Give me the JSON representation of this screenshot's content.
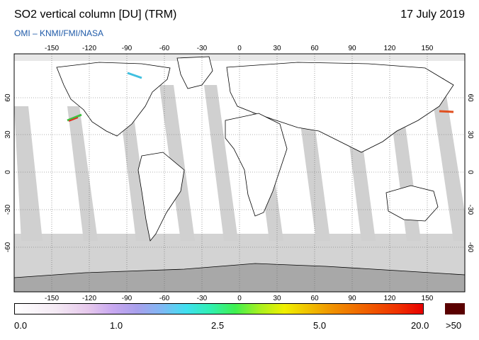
{
  "title": "SO2 vertical column [DU] (TRM)",
  "date": "17 July 2019",
  "source": "OMI  –  KNMI/FMI/NASA",
  "map": {
    "lon_ticks": [
      "-150",
      "-120",
      "-90",
      "-60",
      "-30",
      "0",
      "30",
      "60",
      "90",
      "120",
      "150"
    ],
    "lat_ticks_left": [
      "60",
      "30",
      "0",
      "-30",
      "-60"
    ],
    "lat_ticks_right": [
      "60",
      "30",
      "0",
      "-30",
      "-60"
    ],
    "colors": {
      "no_data": "#d3d3d3",
      "swath_gap": "#a8a8a8",
      "ocean": "#ffffff",
      "land_border": "#000000"
    }
  },
  "colorbar": {
    "labels": [
      "0.0",
      "1.0",
      "2.5",
      "5.0",
      "20.0"
    ],
    "overflow_label": ">50",
    "overflow_color": "#5a0000"
  }
}
